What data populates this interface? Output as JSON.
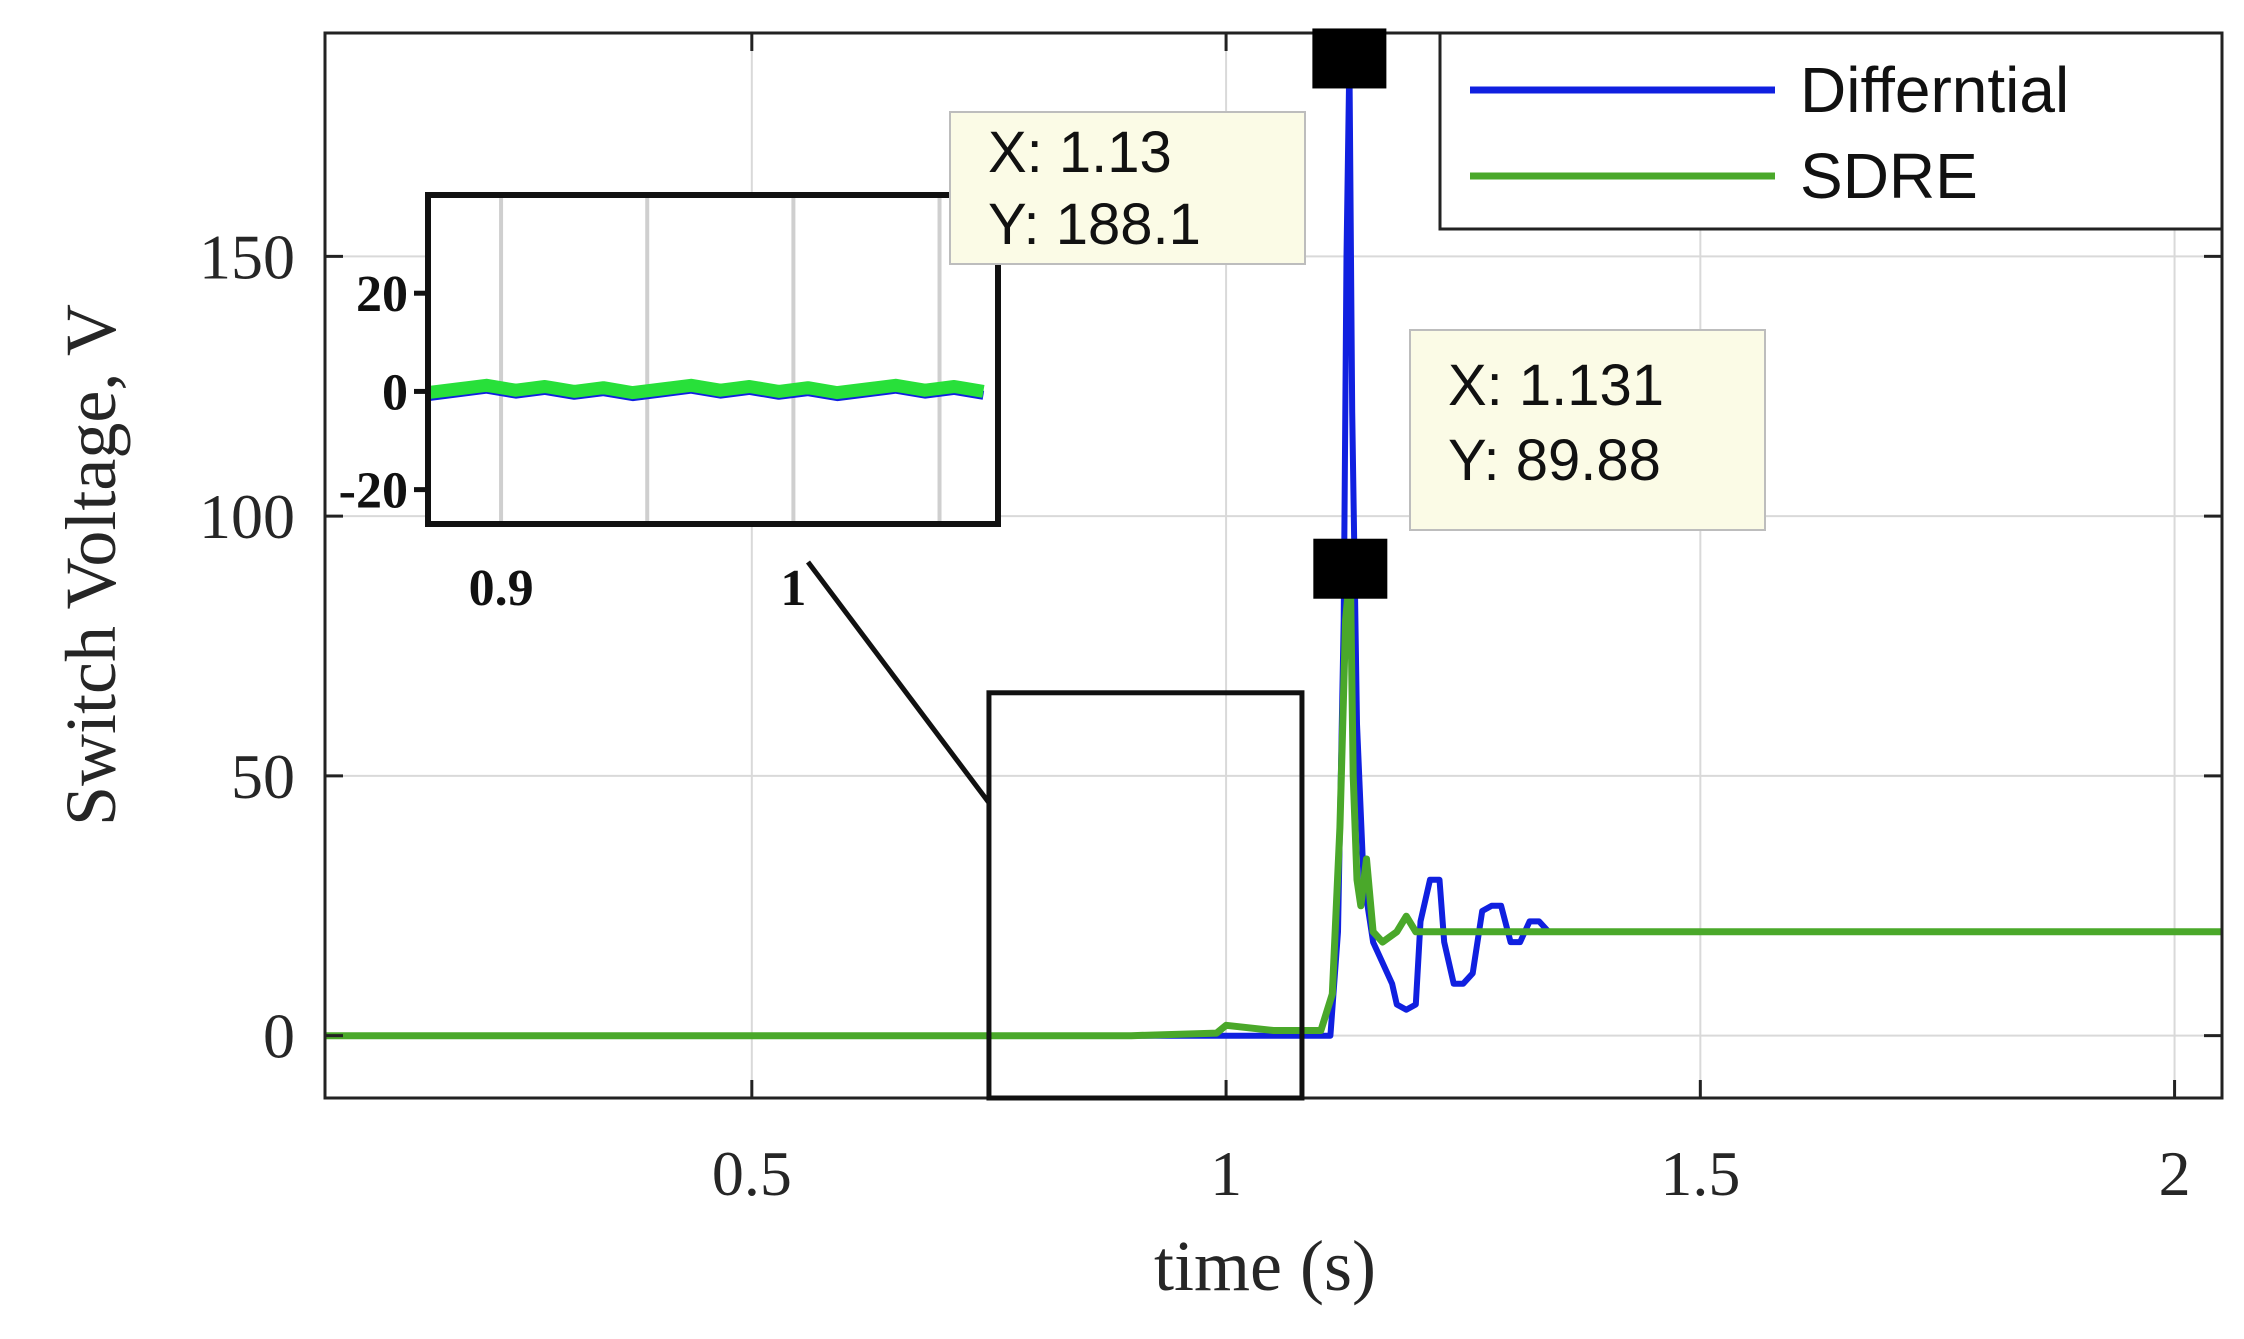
{
  "chart_data": {
    "type": "line",
    "xlabel": "time (s)",
    "ylabel": "Switch Voltage, V",
    "xlim": [
      0.05,
      2.05
    ],
    "ylim": [
      -12,
      193
    ],
    "grid": true,
    "xticks": [
      0.5,
      1,
      1.5,
      2
    ],
    "xtick_labels": [
      "0.5",
      "1",
      "1.5",
      "2"
    ],
    "yticks": [
      0,
      50,
      100,
      150
    ],
    "ytick_labels": [
      "0",
      "50",
      "100",
      "150"
    ],
    "legend": {
      "location": "top-right",
      "entries": [
        {
          "label": "Differntial",
          "color": "#1020e0"
        },
        {
          "label": "SDRE",
          "color": "#4aa82a"
        }
      ]
    },
    "series": [
      {
        "name": "Differntial",
        "color": "#1020e0",
        "x": [
          0.05,
          0.3,
          0.6,
          0.9,
          1.0,
          1.1,
          1.11,
          1.118,
          1.124,
          1.127,
          1.13,
          1.133,
          1.138,
          1.145,
          1.155,
          1.165,
          1.175,
          1.18,
          1.19,
          1.2,
          1.205,
          1.215,
          1.225,
          1.23,
          1.24,
          1.25,
          1.26,
          1.27,
          1.28,
          1.29,
          1.3,
          1.31,
          1.32,
          1.33,
          1.34,
          1.35,
          1.36,
          1.37,
          1.38,
          1.39,
          1.4,
          1.41,
          1.42,
          1.43,
          1.44,
          1.5,
          1.7,
          1.9,
          2.05
        ],
        "y": [
          0,
          0,
          0,
          0,
          0,
          0,
          0,
          20,
          80,
          150,
          188.1,
          120,
          60,
          30,
          18,
          14,
          10,
          6,
          5,
          6,
          22,
          30,
          30,
          18,
          10,
          10,
          12,
          24,
          25,
          25,
          18,
          18,
          22,
          22,
          20,
          20,
          20,
          20,
          20,
          20,
          20,
          20,
          20,
          20,
          20,
          20,
          20,
          20,
          20
        ],
        "annotation": {
          "x": 1.13,
          "y": 188.1,
          "x_label": "X: 1.13",
          "y_label": "Y: 188.1"
        }
      },
      {
        "name": "SDRE",
        "color": "#4aa82a",
        "x": [
          0.05,
          0.3,
          0.6,
          0.9,
          0.99,
          1.0,
          1.05,
          1.1,
          1.112,
          1.12,
          1.126,
          1.131,
          1.134,
          1.138,
          1.142,
          1.148,
          1.155,
          1.165,
          1.18,
          1.19,
          1.2,
          1.3,
          1.5,
          1.7,
          1.9,
          2.05
        ],
        "y": [
          0,
          0,
          0,
          0,
          0.5,
          2,
          1,
          1,
          8,
          40,
          80,
          89.88,
          50,
          30,
          25,
          34,
          20,
          18,
          20,
          23,
          20,
          20,
          20,
          20,
          20,
          20
        ],
        "annotation": {
          "x": 1.131,
          "y": 89.88,
          "x_label": "X: 1.131",
          "y_label": "Y: 89.88"
        }
      }
    ],
    "zoom_box": {
      "x_range": [
        0.75,
        1.08
      ],
      "y_range": [
        -12,
        66
      ]
    },
    "inset": {
      "xlim": [
        0.875,
        1.07
      ],
      "ylim": [
        -27,
        40
      ],
      "xticks": [
        0.9,
        1
      ],
      "xtick_labels": [
        "0.9",
        "1"
      ],
      "yticks": [
        -20,
        0,
        20
      ],
      "ytick_labels": [
        "-20",
        "0",
        "20"
      ]
    }
  }
}
